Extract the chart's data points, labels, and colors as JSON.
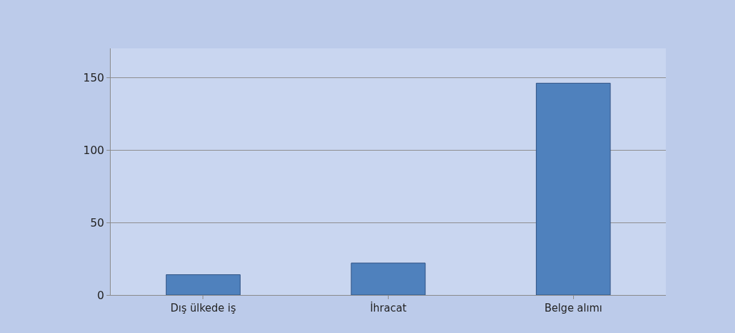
{
  "chart_data": {
    "type": "bar",
    "categories": [
      "Dış ülkede iş",
      "İhracat",
      "Belge alımı"
    ],
    "values": [
      14,
      22,
      146
    ],
    "color": "#4f81bd",
    "ylim": [
      0,
      170
    ],
    "yticks": [
      0,
      50,
      100,
      150
    ],
    "grid": "y"
  }
}
